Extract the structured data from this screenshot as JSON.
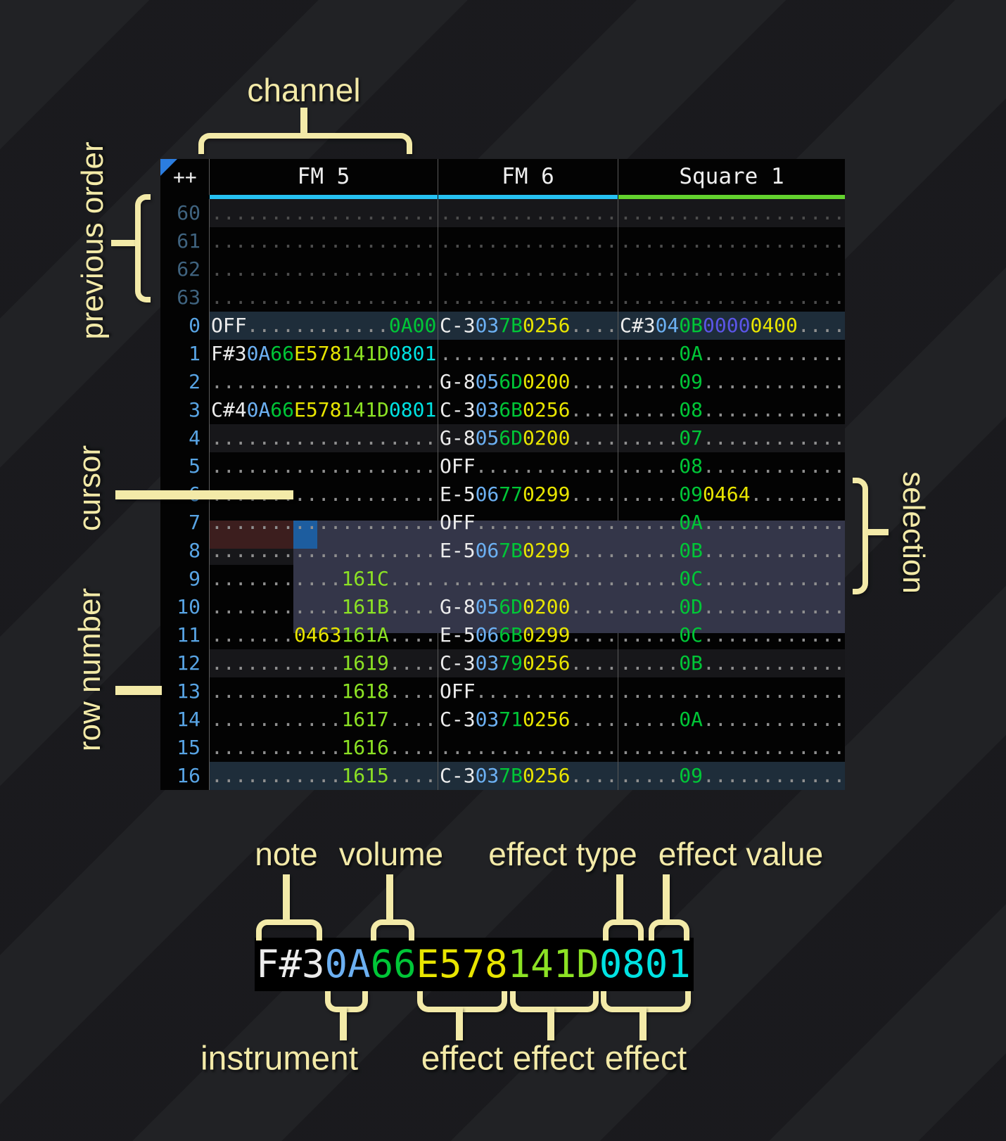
{
  "colors": {
    "cream": "#f3eaa8",
    "border": "#5a5a5a",
    "tri": "#2b7de0",
    "barcyan": "#26c1f2",
    "bargreen": "#63d22e",
    "num": "#58a4e4",
    "numdim": "#3f637f",
    "dot": "#8f8f8f",
    "dotdim": "#4d4d4d",
    "hl1": "#17171a",
    "hl2": "#1e2d3a",
    "selbg": "#343649",
    "playrow": "#3c1e1e",
    "cursorbg": "#1d5d9f",
    "ti": "#6cb0f2",
    "tg": "#00c637",
    "ty": "#e8e500",
    "tl": "#8ce224",
    "tc": "#00e2e2",
    "tp": "#5b55e8"
  },
  "header": {
    "corner": "++",
    "channels": [
      {
        "label": "FM 5",
        "slug": "fm-5",
        "accent": "#26c1f2"
      },
      {
        "label": "FM 6",
        "slug": "fm-6",
        "accent": "#26c1f2"
      },
      {
        "label": "Square 1",
        "slug": "square-1",
        "accent": "#63d22e"
      }
    ]
  },
  "pattern": {
    "rows": [
      {
        "num": "60",
        "dim": true,
        "hl": "hl1",
        "cells": [
          [
            [
              "d",
              "..................."
            ]
          ],
          [
            [
              "d",
              "..............."
            ]
          ],
          [
            [
              "d",
              "..................."
            ]
          ]
        ]
      },
      {
        "num": "61",
        "dim": true,
        "hl": "",
        "cells": [
          [
            [
              "d",
              "..................."
            ]
          ],
          [
            [
              "d",
              "..............."
            ]
          ],
          [
            [
              "d",
              "..................."
            ]
          ]
        ]
      },
      {
        "num": "62",
        "dim": true,
        "hl": "",
        "cells": [
          [
            [
              "d",
              "..................."
            ]
          ],
          [
            [
              "d",
              "..............."
            ]
          ],
          [
            [
              "d",
              "..................."
            ]
          ]
        ]
      },
      {
        "num": "63",
        "dim": true,
        "hl": "",
        "cells": [
          [
            [
              "d",
              "..................."
            ]
          ],
          [
            [
              "d",
              "..............."
            ]
          ],
          [
            [
              "d",
              "..................."
            ]
          ]
        ]
      },
      {
        "num": "0",
        "dim": false,
        "hl": "hl2",
        "cells": [
          [
            [
              "w",
              "OFF"
            ],
            [
              "d",
              "............"
            ],
            [
              "g",
              "0A00"
            ]
          ],
          [
            [
              "w",
              "C-3"
            ],
            [
              "i",
              "03"
            ],
            [
              "g",
              "7B"
            ],
            [
              "y",
              "0256"
            ],
            [
              "d",
              "...."
            ]
          ],
          [
            [
              "w",
              "C#3"
            ],
            [
              "i",
              "04"
            ],
            [
              "g",
              "0B"
            ],
            [
              "p",
              "0000"
            ],
            [
              "y",
              "0400"
            ],
            [
              "d",
              "...."
            ]
          ]
        ]
      },
      {
        "num": "1",
        "dim": false,
        "hl": "",
        "cells": [
          [
            [
              "w",
              "F#3"
            ],
            [
              "i",
              "0A"
            ],
            [
              "g",
              "66"
            ],
            [
              "y",
              "E578"
            ],
            [
              "l",
              "141D"
            ],
            [
              "c",
              "0801"
            ]
          ],
          [
            [
              "d",
              "..............."
            ]
          ],
          [
            [
              "d",
              "....."
            ],
            [
              "g",
              "0A"
            ],
            [
              "d",
              "............"
            ]
          ]
        ]
      },
      {
        "num": "2",
        "dim": false,
        "hl": "",
        "cells": [
          [
            [
              "d",
              "..................."
            ]
          ],
          [
            [
              "w",
              "G-8"
            ],
            [
              "i",
              "05"
            ],
            [
              "g",
              "6D"
            ],
            [
              "y",
              "0200"
            ],
            [
              "d",
              "...."
            ]
          ],
          [
            [
              "d",
              "....."
            ],
            [
              "g",
              "09"
            ],
            [
              "d",
              "............"
            ]
          ]
        ]
      },
      {
        "num": "3",
        "dim": false,
        "hl": "",
        "cells": [
          [
            [
              "w",
              "C#4"
            ],
            [
              "i",
              "0A"
            ],
            [
              "g",
              "66"
            ],
            [
              "y",
              "E578"
            ],
            [
              "l",
              "141D"
            ],
            [
              "c",
              "0801"
            ]
          ],
          [
            [
              "w",
              "C-3"
            ],
            [
              "i",
              "03"
            ],
            [
              "g",
              "6B"
            ],
            [
              "y",
              "0256"
            ],
            [
              "d",
              "...."
            ]
          ],
          [
            [
              "d",
              "....."
            ],
            [
              "g",
              "08"
            ],
            [
              "d",
              "............"
            ]
          ]
        ]
      },
      {
        "num": "4",
        "dim": false,
        "hl": "hl1",
        "cells": [
          [
            [
              "d",
              "..................."
            ]
          ],
          [
            [
              "w",
              "G-8"
            ],
            [
              "i",
              "05"
            ],
            [
              "g",
              "6D"
            ],
            [
              "y",
              "0200"
            ],
            [
              "d",
              "...."
            ]
          ],
          [
            [
              "d",
              "....."
            ],
            [
              "g",
              "07"
            ],
            [
              "d",
              "............"
            ]
          ]
        ]
      },
      {
        "num": "5",
        "dim": false,
        "hl": "",
        "cells": [
          [
            [
              "d",
              "..................."
            ]
          ],
          [
            [
              "w",
              "OFF"
            ],
            [
              "d",
              "............"
            ]
          ],
          [
            [
              "d",
              "....."
            ],
            [
              "g",
              "08"
            ],
            [
              "d",
              "............"
            ]
          ]
        ]
      },
      {
        "num": "6",
        "dim": false,
        "hl": "",
        "cells": [
          [
            [
              "d",
              "..................."
            ]
          ],
          [
            [
              "w",
              "E-5"
            ],
            [
              "i",
              "06"
            ],
            [
              "g",
              "77"
            ],
            [
              "y",
              "0299"
            ],
            [
              "d",
              "...."
            ]
          ],
          [
            [
              "d",
              "....."
            ],
            [
              "g",
              "09"
            ],
            [
              "y",
              "0464"
            ],
            [
              "d",
              "........"
            ]
          ]
        ]
      },
      {
        "num": "7",
        "dim": false,
        "hl": "",
        "cells": [
          [
            [
              "d",
              "..................."
            ]
          ],
          [
            [
              "w",
              "OFF"
            ],
            [
              "d",
              "............"
            ]
          ],
          [
            [
              "d",
              "....."
            ],
            [
              "g",
              "0A"
            ],
            [
              "d",
              "............"
            ]
          ]
        ]
      },
      {
        "num": "8",
        "dim": false,
        "hl": "hl1",
        "cells": [
          [
            [
              "d",
              "..................."
            ]
          ],
          [
            [
              "w",
              "E-5"
            ],
            [
              "i",
              "06"
            ],
            [
              "g",
              "7B"
            ],
            [
              "y",
              "0299"
            ],
            [
              "d",
              "...."
            ]
          ],
          [
            [
              "d",
              "....."
            ],
            [
              "g",
              "0B"
            ],
            [
              "d",
              "............"
            ]
          ]
        ]
      },
      {
        "num": "9",
        "dim": false,
        "hl": "",
        "cells": [
          [
            [
              "d",
              "..........."
            ],
            [
              "l",
              "161C"
            ],
            [
              "d",
              "...."
            ]
          ],
          [
            [
              "d",
              "..............."
            ]
          ],
          [
            [
              "d",
              "....."
            ],
            [
              "g",
              "0C"
            ],
            [
              "d",
              "............"
            ]
          ]
        ]
      },
      {
        "num": "10",
        "dim": false,
        "hl": "",
        "cells": [
          [
            [
              "d",
              "..........."
            ],
            [
              "l",
              "161B"
            ],
            [
              "d",
              "...."
            ]
          ],
          [
            [
              "w",
              "G-8"
            ],
            [
              "i",
              "05"
            ],
            [
              "g",
              "6D"
            ],
            [
              "y",
              "0200"
            ],
            [
              "d",
              "...."
            ]
          ],
          [
            [
              "d",
              "....."
            ],
            [
              "g",
              "0D"
            ],
            [
              "d",
              "............"
            ]
          ]
        ]
      },
      {
        "num": "11",
        "dim": false,
        "hl": "",
        "cells": [
          [
            [
              "d",
              "......."
            ],
            [
              "y",
              "0463"
            ],
            [
              "l",
              "161A"
            ],
            [
              "d",
              "...."
            ]
          ],
          [
            [
              "w",
              "E-5"
            ],
            [
              "i",
              "06"
            ],
            [
              "g",
              "6B"
            ],
            [
              "y",
              "0299"
            ],
            [
              "d",
              "...."
            ]
          ],
          [
            [
              "d",
              "....."
            ],
            [
              "g",
              "0C"
            ],
            [
              "d",
              "............"
            ]
          ]
        ]
      },
      {
        "num": "12",
        "dim": false,
        "hl": "hl1",
        "cells": [
          [
            [
              "d",
              "..........."
            ],
            [
              "l",
              "1619"
            ],
            [
              "d",
              "...."
            ]
          ],
          [
            [
              "w",
              "C-3"
            ],
            [
              "i",
              "03"
            ],
            [
              "g",
              "79"
            ],
            [
              "y",
              "0256"
            ],
            [
              "d",
              "...."
            ]
          ],
          [
            [
              "d",
              "....."
            ],
            [
              "g",
              "0B"
            ],
            [
              "d",
              "............"
            ]
          ]
        ]
      },
      {
        "num": "13",
        "dim": false,
        "hl": "",
        "cells": [
          [
            [
              "d",
              "..........."
            ],
            [
              "l",
              "1618"
            ],
            [
              "d",
              "...."
            ]
          ],
          [
            [
              "w",
              "OFF"
            ],
            [
              "d",
              "............"
            ]
          ],
          [
            [
              "d",
              "..................."
            ]
          ]
        ]
      },
      {
        "num": "14",
        "dim": false,
        "hl": "",
        "cells": [
          [
            [
              "d",
              "..........."
            ],
            [
              "l",
              "1617"
            ],
            [
              "d",
              "...."
            ]
          ],
          [
            [
              "w",
              "C-3"
            ],
            [
              "i",
              "03"
            ],
            [
              "g",
              "71"
            ],
            [
              "y",
              "0256"
            ],
            [
              "d",
              "...."
            ]
          ],
          [
            [
              "d",
              "....."
            ],
            [
              "g",
              "0A"
            ],
            [
              "d",
              "............"
            ]
          ]
        ]
      },
      {
        "num": "15",
        "dim": false,
        "hl": "",
        "cells": [
          [
            [
              "d",
              "..........."
            ],
            [
              "l",
              "1616"
            ],
            [
              "d",
              "...."
            ]
          ],
          [
            [
              "d",
              "..............."
            ]
          ],
          [
            [
              "d",
              "..................."
            ]
          ]
        ]
      },
      {
        "num": "16",
        "dim": false,
        "hl": "hl2",
        "cells": [
          [
            [
              "d",
              "..........."
            ],
            [
              "l",
              "1615"
            ],
            [
              "d",
              "...."
            ]
          ],
          [
            [
              "w",
              "C-3"
            ],
            [
              "i",
              "03"
            ],
            [
              "g",
              "7B"
            ],
            [
              "y",
              "0256"
            ],
            [
              "d",
              "...."
            ]
          ],
          [
            [
              "d",
              "....."
            ],
            [
              "g",
              "09"
            ],
            [
              "d",
              "............"
            ]
          ]
        ]
      }
    ]
  },
  "legend": {
    "segments": [
      [
        "w",
        "F#3"
      ],
      [
        "i",
        "0A"
      ],
      [
        "g",
        "66"
      ],
      [
        "y",
        "E578"
      ],
      [
        "l",
        "141D"
      ],
      [
        "c",
        "0801"
      ]
    ]
  },
  "annotations": {
    "channel": "channel",
    "previous_order": "previous order",
    "cursor": "cursor",
    "row_number": "row number",
    "selection": "selection",
    "note": "note",
    "volume": "volume",
    "effect_type": "effect type",
    "effect_value": "effect value",
    "instrument": "instrument",
    "effect_1": "effect",
    "effect_2": "effect",
    "effect_3": "effect"
  }
}
